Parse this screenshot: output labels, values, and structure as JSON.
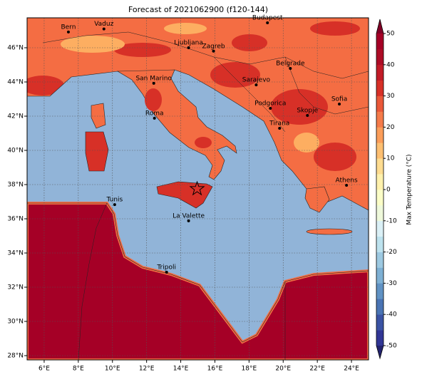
{
  "title": "Forecast of 2021062900 (f120-144)",
  "map": {
    "xlim": [
      5,
      25
    ],
    "ylim": [
      27.75,
      47.75
    ],
    "xticks": [
      {
        "value": 6,
        "label": "6°E"
      },
      {
        "value": 8,
        "label": "8°E"
      },
      {
        "value": 10,
        "label": "10°E"
      },
      {
        "value": 12,
        "label": "12°E"
      },
      {
        "value": 14,
        "label": "14°E"
      },
      {
        "value": 16,
        "label": "16°E"
      },
      {
        "value": 18,
        "label": "18°E"
      },
      {
        "value": 20,
        "label": "20°E"
      },
      {
        "value": 22,
        "label": "22°E"
      },
      {
        "value": 24,
        "label": "24°E"
      }
    ],
    "yticks": [
      {
        "value": 28,
        "label": "28°N"
      },
      {
        "value": 30,
        "label": "30°N"
      },
      {
        "value": 32,
        "label": "32°N"
      },
      {
        "value": 34,
        "label": "34°N"
      },
      {
        "value": 36,
        "label": "36°N"
      },
      {
        "value": 38,
        "label": "38°N"
      },
      {
        "value": 40,
        "label": "40°N"
      },
      {
        "value": 42,
        "label": "42°N"
      },
      {
        "value": 44,
        "label": "44°N"
      },
      {
        "value": 46,
        "label": "46°N"
      }
    ],
    "grid": true,
    "cities": [
      {
        "name": "Bern",
        "lon": 7.42,
        "lat": 46.92
      },
      {
        "name": "Vaduz",
        "lon": 9.5,
        "lat": 47.1
      },
      {
        "name": "Budapest",
        "lon": 19.08,
        "lat": 47.46
      },
      {
        "name": "Ljubljana",
        "lon": 14.46,
        "lat": 46.0
      },
      {
        "name": "Zagreb",
        "lon": 15.92,
        "lat": 45.8
      },
      {
        "name": "Belgrade",
        "lon": 20.42,
        "lat": 44.79
      },
      {
        "name": "San Marino",
        "lon": 12.42,
        "lat": 43.92
      },
      {
        "name": "Sarajevo",
        "lon": 18.42,
        "lat": 43.83
      },
      {
        "name": "Sofia",
        "lon": 23.29,
        "lat": 42.71
      },
      {
        "name": "Podgorica",
        "lon": 19.25,
        "lat": 42.46
      },
      {
        "name": "Skopje",
        "lon": 21.42,
        "lat": 42.04
      },
      {
        "name": "Roma",
        "lon": 12.46,
        "lat": 41.88
      },
      {
        "name": "Tirana",
        "lon": 19.79,
        "lat": 41.29
      },
      {
        "name": "Athens",
        "lon": 23.71,
        "lat": 37.96
      },
      {
        "name": "Tunis",
        "lon": 10.13,
        "lat": 36.83
      },
      {
        "name": "La Valette",
        "lon": 14.46,
        "lat": 35.88
      },
      {
        "name": "Tripoli",
        "lon": 13.17,
        "lat": 32.88
      }
    ],
    "star": {
      "lon": 14.96,
      "lat": 37.75
    }
  },
  "colorbar": {
    "label": "Max Temperature (°C)",
    "lim": [
      -50,
      50
    ],
    "ticks": [
      -50,
      -40,
      -30,
      -20,
      -10,
      0,
      10,
      20,
      30,
      40,
      50
    ],
    "colors": [
      "#313695",
      "#3a53a4",
      "#4a74b4",
      "#6092c4",
      "#7eb0d4",
      "#9dc9e1",
      "#bde2ee",
      "#dbf0f6",
      "#eff9db",
      "#fbfdc7",
      "#fff1ac",
      "#fedc90",
      "#fdbf71",
      "#fb9d59",
      "#f57b4a",
      "#ea5839",
      "#d73027",
      "#c21b27",
      "#ad0c26",
      "#a50026"
    ],
    "under_color": "#23236e",
    "over_color": "#800026"
  }
}
